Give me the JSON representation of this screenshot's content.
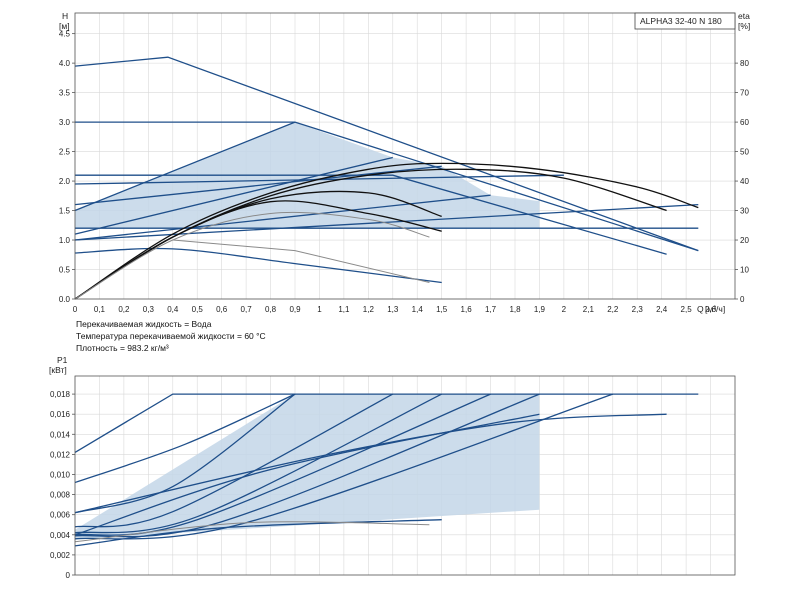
{
  "header": {
    "pump_model": "ALPHA3 32-40 N 180"
  },
  "notes": [
    "Перекачиваемая жидкость = Вода",
    "Температура перекачиваемой жидкости = 60 °C",
    "Плотность = 983.2 кг/м³"
  ],
  "chart_data": [
    {
      "type": "line",
      "title": "ALPHA3 32-40 N 180",
      "ylabel": "H",
      "yunit": "[м]",
      "y2label": "eta",
      "y2unit": "[%]",
      "xlabel": "Q",
      "xunit": "[м³/ч]",
      "xlim": [
        0,
        2.7
      ],
      "ylim": [
        0,
        4.85
      ],
      "y2lim": [
        0,
        97
      ],
      "x_ticks": [
        "0",
        "0,1",
        "0,2",
        "0,3",
        "0,4",
        "0,5",
        "0,6",
        "0,7",
        "0,8",
        "0,9",
        "1",
        "1,1",
        "1,2",
        "1,3",
        "1,4",
        "1,5",
        "1,6",
        "1,7",
        "1,8",
        "1,9",
        "2",
        "2,1",
        "2,2",
        "2,3",
        "2,4",
        "2,5",
        "2,6"
      ],
      "y_ticks": [
        "0.0",
        "0.5",
        "1.0",
        "1.5",
        "2.0",
        "2.5",
        "3.0",
        "3.5",
        "4.0",
        "4.5"
      ],
      "y2_ticks": [
        "0",
        "10",
        "20",
        "30",
        "40",
        "50",
        "60",
        "70",
        "80"
      ],
      "grid": true,
      "series": [
        {
          "group": "curve",
          "x": [
            0,
            0.38,
            2.55
          ],
          "y": [
            3.95,
            4.1,
            0.82
          ]
        },
        {
          "group": "curve",
          "x": [
            0,
            0.9,
            2.55
          ],
          "y": [
            3.0,
            3.0,
            0.82
          ]
        },
        {
          "group": "curve",
          "x": [
            0,
            1.3,
            2.42
          ],
          "y": [
            2.1,
            2.1,
            0.76
          ]
        },
        {
          "group": "curve",
          "x": [
            0,
            0.9
          ],
          "y": [
            1.5,
            3.0
          ]
        },
        {
          "group": "curve",
          "x": [
            0,
            1.3
          ],
          "y": [
            1.1,
            2.4
          ]
        },
        {
          "group": "curve",
          "x": [
            0,
            1.5
          ],
          "y": [
            1.6,
            2.25
          ]
        },
        {
          "group": "curve",
          "x": [
            0,
            2.55
          ],
          "y": [
            1.0,
            1.6
          ]
        },
        {
          "group": "curve",
          "x": [
            0,
            1.7
          ],
          "y": [
            1.0,
            1.76
          ]
        },
        {
          "group": "curve",
          "x": [
            0,
            2.55
          ],
          "y": [
            1.2,
            1.2
          ]
        },
        {
          "group": "curve",
          "x": [
            0,
            2.0
          ],
          "y": [
            1.95,
            2.1
          ]
        },
        {
          "group": "curve",
          "x": [
            0,
            0.4,
            0.9,
            1.5
          ],
          "y": [
            0.78,
            0.85,
            0.6,
            0.28
          ]
        },
        {
          "group": "efficiency",
          "x": [
            0,
            0.4,
            0.8,
            1.2,
            1.5,
            1.9,
            2.3,
            2.55
          ],
          "y": [
            0,
            22,
            36,
            44,
            46,
            44,
            38,
            31
          ]
        },
        {
          "group": "efficiency",
          "x": [
            0,
            0.4,
            0.8,
            1.2,
            1.6,
            2.0,
            2.42
          ],
          "y": [
            0,
            21,
            35,
            42,
            44,
            41,
            30
          ]
        },
        {
          "group": "efficiency",
          "x": [
            0,
            0.4,
            0.8,
            1.2,
            1.5
          ],
          "y": [
            0,
            21,
            34,
            36,
            28
          ]
        },
        {
          "group": "efficiency",
          "x": [
            0,
            0.4,
            0.8,
            1.2,
            1.5
          ],
          "y": [
            0,
            21,
            33,
            29,
            23
          ]
        },
        {
          "group": "efficiency-thin",
          "x": [
            0,
            0.4,
            0.8,
            1.2,
            1.45
          ],
          "y": [
            0,
            20,
            29,
            27,
            21
          ]
        },
        {
          "group": "efficiency-thin",
          "x": [
            0.4,
            0.9,
            1.45
          ],
          "y": [
            1.0,
            0.82,
            0.28
          ]
        }
      ],
      "operating_area": {
        "x": [
          0,
          0.9,
          1.3,
          1.5,
          1.7,
          1.9,
          1.9,
          0
        ],
        "y": [
          1.5,
          3.0,
          2.4,
          2.25,
          1.76,
          1.66,
          1.2,
          1.2
        ]
      }
    },
    {
      "type": "line",
      "ylabel": "P1",
      "yunit": "[кВт]",
      "xlim": [
        0,
        2.7
      ],
      "ylim": [
        0,
        0.0198
      ],
      "y_ticks": [
        "0",
        "0,002",
        "0,004",
        "0,006",
        "0,008",
        "0,010",
        "0,012",
        "0,014",
        "0,016",
        "0,018"
      ],
      "grid": true,
      "series": [
        {
          "group": "power",
          "x": [
            0,
            0.4,
            2.55
          ],
          "y": [
            0.0122,
            0.018,
            0.018
          ]
        },
        {
          "group": "power",
          "x": [
            0,
            0.45,
            0.9
          ],
          "y": [
            0.0092,
            0.013,
            0.018
          ]
        },
        {
          "group": "power",
          "x": [
            0,
            0.4,
            0.9
          ],
          "y": [
            0.0062,
            0.0088,
            0.018
          ]
        },
        {
          "group": "power",
          "x": [
            0,
            0.4,
            1.3
          ],
          "y": [
            0.0048,
            0.0063,
            0.018
          ]
        },
        {
          "group": "power",
          "x": [
            0,
            0.5,
            1.5
          ],
          "y": [
            0.0042,
            0.0058,
            0.018
          ]
        },
        {
          "group": "power",
          "x": [
            0,
            0.5,
            1.7
          ],
          "y": [
            0.004,
            0.0055,
            0.018
          ]
        },
        {
          "group": "power",
          "x": [
            0,
            0.6,
            1.9
          ],
          "y": [
            0.0039,
            0.0053,
            0.018
          ]
        },
        {
          "group": "power",
          "x": [
            0,
            0.7,
            2.2
          ],
          "y": [
            0.0036,
            0.0052,
            0.018
          ]
        },
        {
          "group": "power",
          "x": [
            0,
            1.0,
            1.8,
            2.42
          ],
          "y": [
            0.0062,
            0.0118,
            0.0152,
            0.016
          ]
        },
        {
          "group": "power",
          "x": [
            0,
            0.8,
            1.9
          ],
          "y": [
            0.004,
            0.0105,
            0.016
          ]
        },
        {
          "group": "power",
          "x": [
            0,
            0.6,
            1.5
          ],
          "y": [
            0.0029,
            0.0047,
            0.0055
          ]
        },
        {
          "group": "power-thin",
          "x": [
            0,
            0.7,
            1.45
          ],
          "y": [
            0.0033,
            0.0052,
            0.005
          ]
        }
      ],
      "operating_area": {
        "x": [
          0,
          0.9,
          1.9,
          1.9,
          0
        ],
        "y": [
          0.0045,
          0.018,
          0.018,
          0.0065,
          0.0035
        ]
      }
    }
  ]
}
